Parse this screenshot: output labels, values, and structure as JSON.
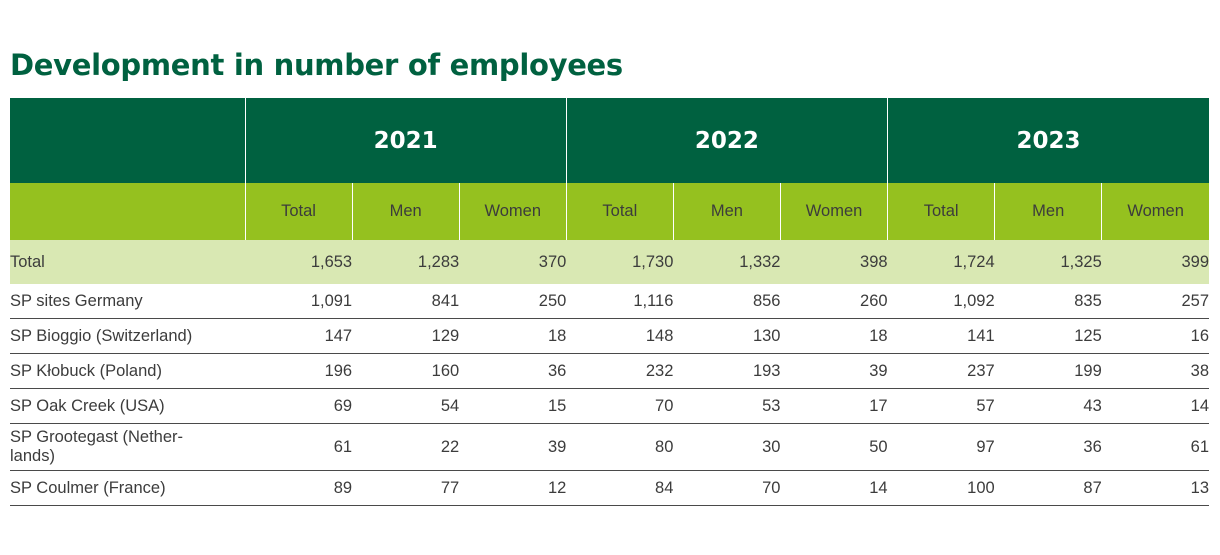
{
  "title": "Development in number of employees",
  "years": [
    "2021",
    "2022",
    "2023"
  ],
  "subheaders": [
    "Total",
    "Men",
    "Women"
  ],
  "rows": [
    {
      "label": "Total",
      "values": [
        "1,653",
        "1,283",
        "370",
        "1,730",
        "1,332",
        "398",
        "1,724",
        "1,325",
        "399"
      ]
    },
    {
      "label": "SP sites Germany",
      "values": [
        "1,091",
        "841",
        "250",
        "1,116",
        "856",
        "260",
        "1,092",
        "835",
        "257"
      ]
    },
    {
      "label": "SP Bioggio (Switzerland)",
      "values": [
        "147",
        "129",
        "18",
        "148",
        "130",
        "18",
        "141",
        "125",
        "16"
      ]
    },
    {
      "label": "SP Kłobuck (Poland)",
      "values": [
        "196",
        "160",
        "36",
        "232",
        "193",
        "39",
        "237",
        "199",
        "38"
      ]
    },
    {
      "label": "SP Oak Creek (USA)",
      "values": [
        "69",
        "54",
        "15",
        "70",
        "53",
        "17",
        "57",
        "43",
        "14"
      ]
    },
    {
      "label": "SP Grootegast (Nether-\nlands)",
      "values": [
        "61",
        "22",
        "39",
        "80",
        "30",
        "50",
        "97",
        "36",
        "61"
      ]
    },
    {
      "label": "SP Coulmer (France)",
      "values": [
        "89",
        "77",
        "12",
        "84",
        "70",
        "14",
        "100",
        "87",
        "13"
      ]
    }
  ],
  "colors": {
    "header_dark": "#006140",
    "header_light": "#95c11f",
    "total_row": "#d9e8b3",
    "text": "#3c3c3c"
  }
}
